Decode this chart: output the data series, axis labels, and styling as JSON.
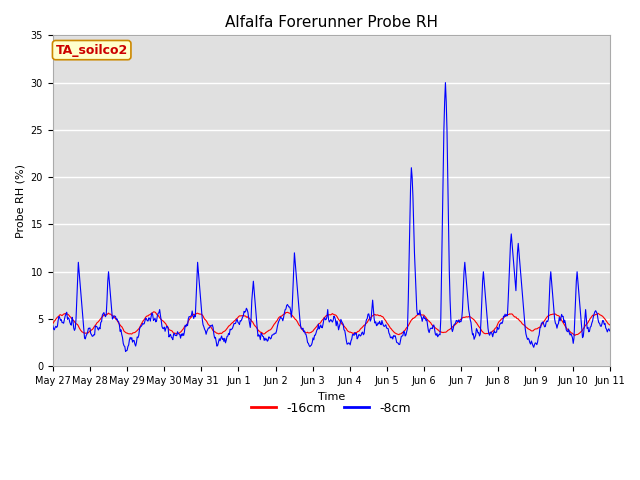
{
  "title": "Alfalfa Forerunner Probe RH",
  "ylabel": "Probe RH (%)",
  "xlabel": "Time",
  "annotation": "TA_soilco2",
  "ylim": [
    0,
    35
  ],
  "yticks": [
    0,
    5,
    10,
    15,
    20,
    25,
    30,
    35
  ],
  "xtick_labels": [
    "May 27",
    "May 28",
    "May 29",
    "May 30",
    "May 31",
    "Jun 1",
    "Jun 2",
    "Jun 3",
    "Jun 4",
    "Jun 5",
    "Jun 6",
    "Jun 7",
    "Jun 8",
    "Jun 9",
    "Jun 10",
    "Jun 11"
  ],
  "legend_labels": [
    "-16cm",
    "-8cm"
  ],
  "legend_colors": [
    "#ff0000",
    "#0000ff"
  ],
  "grid_color": "#ffffff",
  "bg_color": "#e0e0e0",
  "line_red_color": "#ff0000",
  "line_blue_color": "#0000ff",
  "title_fontsize": 11,
  "label_fontsize": 8,
  "tick_fontsize": 7,
  "annotation_fontsize": 9,
  "legend_fontsize": 9
}
